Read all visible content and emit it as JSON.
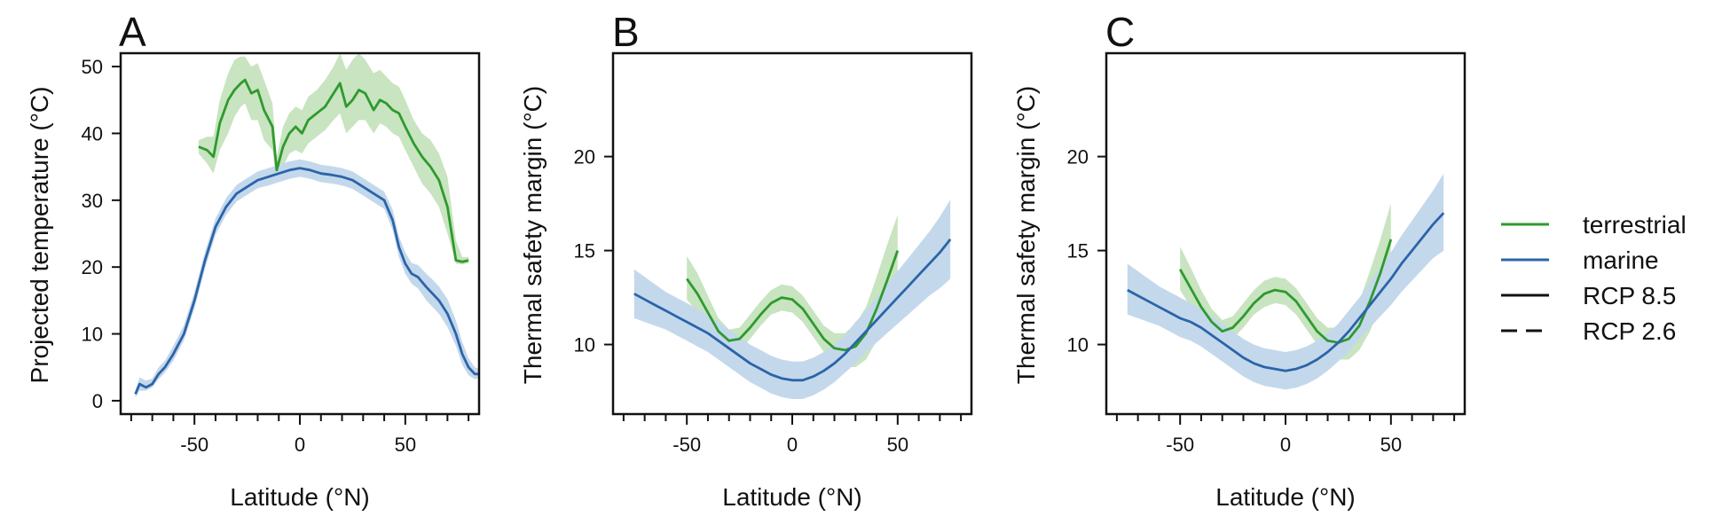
{
  "colors": {
    "terrestrial": "#2e9a2e",
    "marine": "#2b64a8",
    "terrestrial_band": "#c8e4c0",
    "marine_band": "#c4d8ec"
  },
  "legend": {
    "placement": "right",
    "items": [
      {
        "label": "terrestrial",
        "color": "#2e9a2e",
        "style": "solid"
      },
      {
        "label": "marine",
        "color": "#2b64a8",
        "style": "solid"
      },
      {
        "label": "RCP 8.5",
        "color": "#111111",
        "style": "solid"
      },
      {
        "label": "RCP 2.6",
        "color": "#111111",
        "style": "dashed"
      }
    ]
  },
  "chart_data": [
    {
      "type": "line",
      "panel_label": "A",
      "xlabel": "Latitude (°N)",
      "ylabel": "Projected temperature (°C)",
      "xlim": [
        -85,
        85
      ],
      "ylim": [
        -2,
        52
      ],
      "xticks": [
        -50,
        0,
        50
      ],
      "xminor_step": 10,
      "yticks": [
        0,
        10,
        20,
        30,
        40,
        50
      ],
      "grid": false,
      "series": [
        {
          "name": "terrestrial",
          "color": "#2e9a2e",
          "x": [
            -48,
            -44,
            -41,
            -38,
            -34,
            -31,
            -28,
            -26,
            -23,
            -20,
            -17,
            -13,
            -11,
            -8,
            -5,
            -2,
            1,
            4,
            8,
            12,
            16,
            19,
            22,
            25,
            28,
            31,
            35,
            38,
            41,
            44,
            47,
            50,
            54,
            58,
            62,
            66,
            70,
            74,
            77,
            80
          ],
          "y": [
            38,
            37.5,
            36.5,
            41.5,
            45,
            46.5,
            47.5,
            48,
            46,
            46.5,
            43.5,
            41,
            34.5,
            38,
            40,
            41,
            40,
            42,
            43,
            44,
            46,
            47.5,
            44,
            45,
            46.5,
            46,
            43.5,
            45,
            44.5,
            43.5,
            43,
            41,
            38.5,
            36.5,
            35,
            33,
            29,
            21,
            20.8,
            21
          ],
          "lower": [
            37,
            35.5,
            34,
            37.5,
            40,
            42.5,
            44,
            44.5,
            42,
            42,
            39,
            37.5,
            33,
            35,
            37,
            37.5,
            37,
            38.5,
            39.5,
            40.5,
            42,
            43,
            40,
            41,
            42,
            42,
            40,
            41.5,
            41,
            40,
            39.5,
            37.5,
            35,
            32.5,
            31,
            29,
            25,
            20.5,
            20.4,
            20.6
          ],
          "upper": [
            39,
            39.5,
            39.5,
            45,
            49,
            51,
            51.5,
            51.5,
            50,
            50.5,
            48,
            44.5,
            36.5,
            41,
            43,
            44,
            43.5,
            45.5,
            46.5,
            48,
            50,
            52,
            49.5,
            51,
            52,
            51,
            49,
            49.5,
            48.5,
            47.5,
            47,
            45,
            42,
            40,
            39,
            37,
            33.5,
            24,
            21.5,
            21.5
          ]
        },
        {
          "name": "marine",
          "color": "#2b64a8",
          "x": [
            -78,
            -76,
            -73,
            -70,
            -67,
            -64,
            -60,
            -55,
            -50,
            -45,
            -40,
            -35,
            -30,
            -25,
            -20,
            -15,
            -10,
            -5,
            0,
            5,
            10,
            15,
            20,
            25,
            30,
            35,
            40,
            44,
            47,
            50,
            53,
            56,
            60,
            63,
            66,
            70,
            74,
            77,
            80,
            83,
            85
          ],
          "y": [
            1,
            2.5,
            2,
            2.5,
            4,
            5,
            7,
            10,
            15,
            21,
            26,
            29,
            31,
            32,
            33,
            33.5,
            34,
            34.5,
            34.8,
            34.5,
            34,
            33.8,
            33.5,
            33,
            32,
            31,
            30,
            27,
            23,
            20.5,
            19,
            18.5,
            17,
            16,
            15,
            13,
            10,
            7,
            5,
            4,
            4
          ],
          "lower": [
            0.5,
            1.5,
            1.5,
            2,
            3.2,
            4.2,
            6,
            9,
            13.8,
            19.8,
            24.8,
            27.8,
            29.8,
            30.8,
            31.8,
            32.2,
            32.7,
            33.2,
            33.5,
            33.2,
            32.7,
            32.5,
            32.2,
            31.7,
            30.7,
            29.7,
            28.7,
            25.5,
            21.5,
            19,
            17.5,
            16.8,
            15,
            14,
            13,
            11,
            8.2,
            5.4,
            3.8,
            3.2,
            3.4
          ],
          "upper": [
            1.5,
            3.5,
            3,
            3.3,
            5,
            6,
            8.2,
            11.3,
            16.3,
            22.3,
            27.3,
            30.3,
            32.3,
            33.3,
            34.3,
            34.8,
            35.3,
            35.8,
            36.1,
            35.8,
            35.3,
            35.1,
            34.8,
            34.3,
            33.3,
            32.3,
            31.3,
            28.6,
            24.6,
            22.2,
            20.6,
            20.3,
            19,
            18.1,
            17.1,
            15.2,
            12,
            8.8,
            6.4,
            5,
            4.8
          ]
        }
      ]
    },
    {
      "type": "line",
      "panel_label": "B",
      "xlabel": "Latitude (°N)",
      "ylabel": "Thermal safety margin (°C)",
      "xlim": [
        -85,
        85
      ],
      "ylim": [
        6.3,
        25.5
      ],
      "xticks": [
        -50,
        0,
        50
      ],
      "xminor_step": 10,
      "yticks": [
        10,
        15,
        20
      ],
      "grid": false,
      "series": [
        {
          "name": "terrestrial",
          "color": "#2e9a2e",
          "x": [
            -50,
            -45,
            -40,
            -35,
            -30,
            -25,
            -20,
            -15,
            -10,
            -5,
            0,
            5,
            10,
            15,
            20,
            25,
            30,
            35,
            40,
            45,
            50
          ],
          "y": [
            13.5,
            12.7,
            11.7,
            10.7,
            10.2,
            10.3,
            10.9,
            11.6,
            12.2,
            12.5,
            12.4,
            11.9,
            11.1,
            10.3,
            9.8,
            9.7,
            9.9,
            10.6,
            11.9,
            13.4,
            15
          ],
          "lower": [
            12.4,
            11.7,
            10.9,
            10.1,
            9.6,
            9.7,
            10.3,
            11,
            11.6,
            11.8,
            11.7,
            11.2,
            10.4,
            9.6,
            9,
            8.8,
            8.8,
            9.2,
            10.2,
            11.4,
            12.7
          ],
          "upper": [
            14.7,
            13.8,
            12.6,
            11.4,
            10.8,
            10.9,
            11.6,
            12.3,
            12.9,
            13.2,
            13.1,
            12.6,
            11.8,
            11,
            10.6,
            10.6,
            11.1,
            12,
            13.6,
            15.3,
            16.9
          ]
        },
        {
          "name": "marine",
          "color": "#2b64a8",
          "x": [
            -75,
            -70,
            -65,
            -60,
            -55,
            -50,
            -45,
            -40,
            -35,
            -30,
            -25,
            -20,
            -15,
            -10,
            -5,
            0,
            5,
            10,
            15,
            20,
            25,
            30,
            35,
            40,
            45,
            50,
            55,
            60,
            65,
            70,
            75
          ],
          "y": [
            12.7,
            12.4,
            12.1,
            11.8,
            11.5,
            11.2,
            10.9,
            10.6,
            10.2,
            9.8,
            9.4,
            9,
            8.7,
            8.4,
            8.2,
            8.1,
            8.1,
            8.3,
            8.6,
            9,
            9.5,
            10.1,
            10.7,
            11.3,
            11.9,
            12.5,
            13.1,
            13.7,
            14.3,
            14.9,
            15.6
          ],
          "lower": [
            11.4,
            11.2,
            11,
            10.8,
            10.5,
            10.2,
            9.9,
            9.6,
            9.2,
            8.8,
            8.4,
            8,
            7.7,
            7.4,
            7.2,
            7.1,
            7.1,
            7.3,
            7.6,
            8,
            8.5,
            9,
            9.6,
            10.1,
            10.6,
            11.1,
            11.6,
            12.1,
            12.6,
            13,
            13.5
          ],
          "upper": [
            14,
            13.6,
            13.2,
            12.8,
            12.5,
            12.2,
            11.9,
            11.6,
            11.2,
            10.8,
            10.4,
            10,
            9.7,
            9.4,
            9.2,
            9.1,
            9.1,
            9.3,
            9.6,
            10,
            10.5,
            11.2,
            11.8,
            12.5,
            13.2,
            13.9,
            14.6,
            15.3,
            16,
            16.8,
            17.7
          ]
        }
      ]
    },
    {
      "type": "line",
      "panel_label": "C",
      "xlabel": "Latitude (°N)",
      "ylabel": "Thermal safety margin (°C)",
      "xlim": [
        -85,
        85
      ],
      "ylim": [
        6.3,
        25.5
      ],
      "xticks": [
        -50,
        0,
        50
      ],
      "xminor_step": 10,
      "yticks": [
        10,
        15,
        20
      ],
      "grid": false,
      "series": [
        {
          "name": "terrestrial",
          "color": "#2e9a2e",
          "x": [
            -50,
            -45,
            -40,
            -35,
            -30,
            -25,
            -20,
            -15,
            -10,
            -5,
            0,
            5,
            10,
            15,
            20,
            25,
            30,
            35,
            40,
            45,
            50
          ],
          "y": [
            14,
            13,
            12,
            11.2,
            10.7,
            10.9,
            11.5,
            12.2,
            12.7,
            12.9,
            12.8,
            12.3,
            11.5,
            10.7,
            10.2,
            10.1,
            10.3,
            11,
            12.3,
            13.8,
            15.6
          ],
          "lower": [
            12.9,
            12,
            11.2,
            10.6,
            10.1,
            10.3,
            10.9,
            11.6,
            12,
            12.2,
            12.1,
            11.6,
            10.8,
            10,
            9.4,
            9.2,
            9.2,
            9.7,
            10.7,
            12,
            13.5
          ],
          "upper": [
            15.2,
            14.1,
            12.9,
            11.9,
            11.3,
            11.5,
            12.2,
            12.9,
            13.4,
            13.6,
            13.5,
            13,
            12.2,
            11.4,
            10.9,
            10.9,
            11.4,
            12.3,
            13.9,
            15.6,
            17.5
          ]
        },
        {
          "name": "marine",
          "color": "#2b64a8",
          "x": [
            -75,
            -70,
            -65,
            -60,
            -55,
            -50,
            -45,
            -40,
            -35,
            -30,
            -25,
            -20,
            -15,
            -10,
            -5,
            0,
            5,
            10,
            15,
            20,
            25,
            30,
            35,
            40,
            45,
            50,
            55,
            60,
            65,
            70,
            75
          ],
          "y": [
            12.9,
            12.6,
            12.3,
            12,
            11.7,
            11.4,
            11.2,
            10.9,
            10.5,
            10.1,
            9.7,
            9.3,
            9,
            8.8,
            8.7,
            8.6,
            8.7,
            8.9,
            9.2,
            9.6,
            10.1,
            10.7,
            11.4,
            12.1,
            12.8,
            13.5,
            14.3,
            15,
            15.7,
            16.4,
            17
          ],
          "lower": [
            11.6,
            11.4,
            11.2,
            11,
            10.7,
            10.4,
            10.2,
            9.9,
            9.5,
            9.1,
            8.7,
            8.3,
            8,
            7.8,
            7.7,
            7.6,
            7.7,
            7.9,
            8.2,
            8.6,
            9.1,
            9.6,
            10.3,
            10.9,
            11.5,
            12.1,
            12.8,
            13.4,
            14,
            14.6,
            15
          ],
          "upper": [
            14.3,
            13.9,
            13.5,
            13.1,
            12.8,
            12.5,
            12.2,
            11.9,
            11.5,
            11.1,
            10.7,
            10.3,
            10,
            9.8,
            9.7,
            9.6,
            9.7,
            9.9,
            10.2,
            10.6,
            11.1,
            11.8,
            12.5,
            13.3,
            14.1,
            14.9,
            15.8,
            16.6,
            17.4,
            18.2,
            19.1
          ]
        }
      ]
    }
  ]
}
